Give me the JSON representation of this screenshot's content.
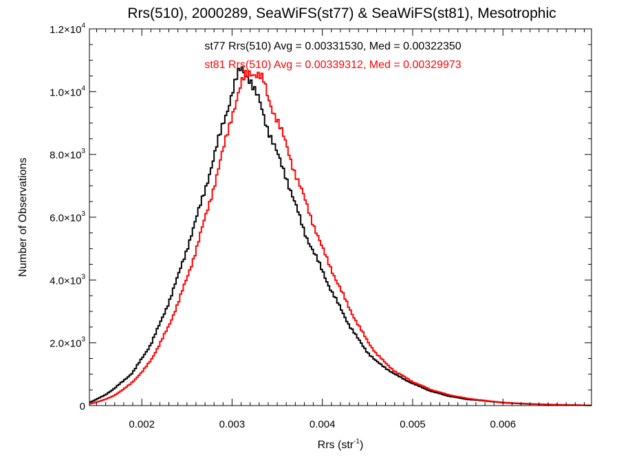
{
  "chart_data": {
    "type": "line",
    "title": "Rrs(510), 2000289, SeaWiFS(st77) & SeaWiFS(st81), Mesotrophic",
    "xlabel": "Rrs (str",
    "xlabel_sup": "-1",
    "xlabel_end": ")",
    "ylabel": "Number of Observations",
    "xlim": [
      0.00142,
      0.00698
    ],
    "ylim": [
      0,
      12000
    ],
    "x_ticks": [
      0.002,
      0.003,
      0.004,
      0.005,
      0.006
    ],
    "x_tick_labels": [
      "0.002",
      "0.003",
      "0.004",
      "0.005",
      "0.006"
    ],
    "y_ticks": [
      0,
      2000,
      4000,
      6000,
      8000,
      10000,
      12000
    ],
    "y_tick_labels": [
      {
        "mant": "0",
        "exp": ""
      },
      {
        "mant": "2.0×10",
        "exp": "3"
      },
      {
        "mant": "4.0×10",
        "exp": "3"
      },
      {
        "mant": "6.0×10",
        "exp": "3"
      },
      {
        "mant": "8.0×10",
        "exp": "3"
      },
      {
        "mant": "1.0×10",
        "exp": "4"
      },
      {
        "mant": "1.2×10",
        "exp": "4"
      }
    ],
    "grid": false,
    "legend_position": "top-center",
    "series": [
      {
        "name": "st77 Rrs(510) Avg = 0.00331530, Med = 0.00322350",
        "color": "#000000",
        "x": [
          0.00142,
          0.0015,
          0.0016,
          0.0017,
          0.0018,
          0.0019,
          0.002,
          0.0021,
          0.0022,
          0.0023,
          0.0024,
          0.0025,
          0.0026,
          0.0027,
          0.0028,
          0.0029,
          0.003,
          0.00305,
          0.0031,
          0.00315,
          0.0032,
          0.00325,
          0.0033,
          0.0034,
          0.0035,
          0.0036,
          0.0037,
          0.0038,
          0.0039,
          0.004,
          0.0041,
          0.0042,
          0.0043,
          0.0044,
          0.0045,
          0.0046,
          0.0047,
          0.0048,
          0.005,
          0.0052,
          0.0054,
          0.0056,
          0.0058,
          0.006,
          0.0062,
          0.0064,
          0.0066,
          0.0068,
          0.00698
        ],
        "y": [
          100,
          200,
          350,
          550,
          800,
          1050,
          1500,
          1950,
          2600,
          3300,
          4100,
          5000,
          5900,
          6900,
          7900,
          9000,
          9950,
          10400,
          10750,
          10600,
          10400,
          10000,
          9700,
          8800,
          8000,
          7300,
          6400,
          5550,
          4900,
          4300,
          3650,
          3100,
          2550,
          2100,
          1700,
          1400,
          1200,
          1000,
          700,
          460,
          300,
          200,
          150,
          90,
          60,
          40,
          25,
          15,
          5
        ]
      },
      {
        "name": "st81 Rrs(510) Avg = 0.00339312, Med = 0.00329973",
        "color": "#ff0000",
        "x": [
          0.00142,
          0.0015,
          0.0016,
          0.0017,
          0.0018,
          0.0019,
          0.002,
          0.0021,
          0.0022,
          0.0023,
          0.0024,
          0.0025,
          0.0026,
          0.0027,
          0.0028,
          0.0029,
          0.003,
          0.0031,
          0.00315,
          0.0032,
          0.00325,
          0.0033,
          0.00335,
          0.0034,
          0.0035,
          0.0036,
          0.0037,
          0.0038,
          0.0039,
          0.004,
          0.0041,
          0.0042,
          0.0043,
          0.0044,
          0.0045,
          0.0046,
          0.0047,
          0.0048,
          0.005,
          0.0052,
          0.0054,
          0.0056,
          0.0058,
          0.006,
          0.0062,
          0.0064,
          0.0066,
          0.0068,
          0.00698
        ],
        "y": [
          50,
          110,
          200,
          330,
          520,
          760,
          1050,
          1450,
          1950,
          2550,
          3250,
          4050,
          4950,
          5950,
          7000,
          8100,
          9300,
          10200,
          10500,
          10650,
          10600,
          10500,
          10300,
          9800,
          9100,
          8300,
          7400,
          6600,
          5800,
          5000,
          4350,
          3700,
          3100,
          2550,
          2050,
          1650,
          1350,
          1100,
          760,
          510,
          340,
          230,
          160,
          100,
          70,
          45,
          30,
          18,
          6
        ]
      }
    ]
  }
}
